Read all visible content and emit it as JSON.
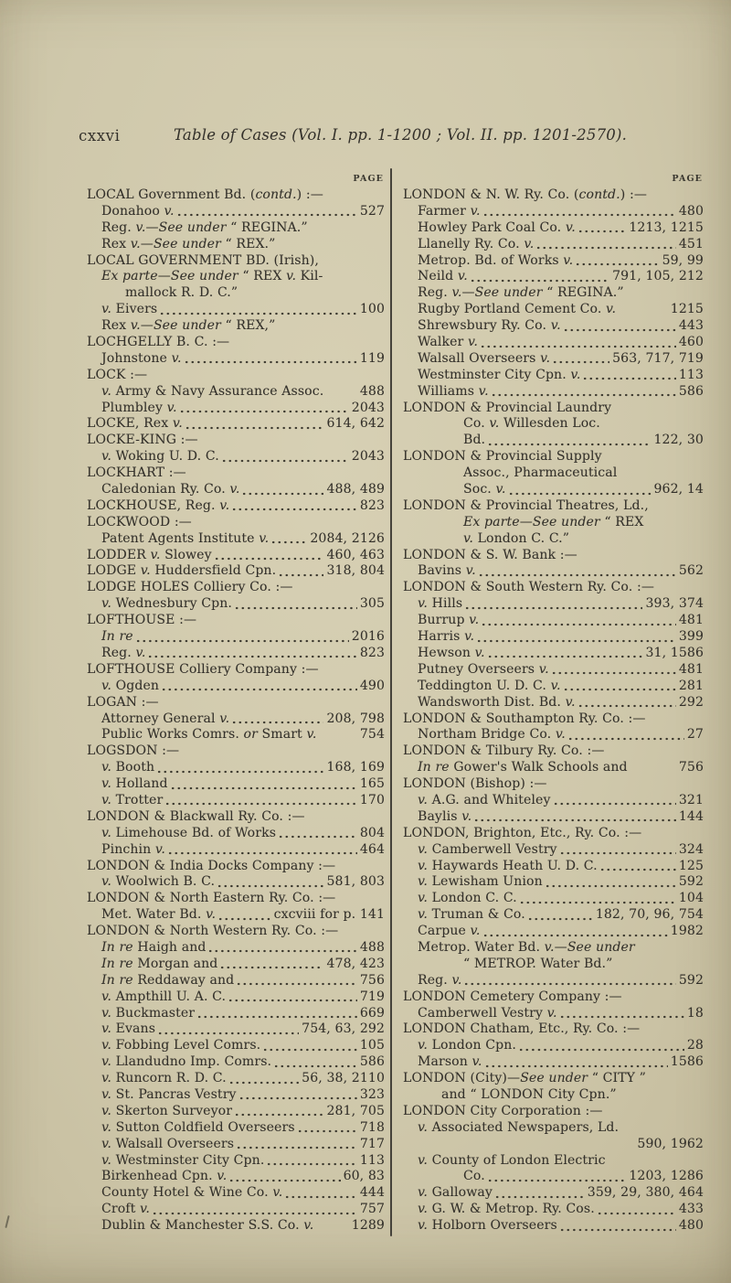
{
  "header": {
    "folio": "cxxvi",
    "title": "Table of Cases (Vol. I. pp. 1-1200 ; Vol. II. pp. 1201-2570).",
    "page_label": "PAGE"
  },
  "columns": [
    {
      "entries": [
        {
          "t": "LOCAL Government Bd. (contd.) :—",
          "i": 0
        },
        {
          "t": "Donahoo v.",
          "d": true,
          "p": "527",
          "i": 1
        },
        {
          "t": "Reg. v.—See under “ REGINA.”",
          "i": 1
        },
        {
          "t": "Rex v.—See under “ REX.”",
          "i": 1
        },
        {
          "t": "LOCAL GOVERNMENT BD. (Irish),",
          "i": 0
        },
        {
          "t": "Ex parte—See under “ REX v. Kil-",
          "i": 1
        },
        {
          "t": "mallock R. D. C.”",
          "i": 2
        },
        {
          "t": "v. Eivers",
          "d": true,
          "p": "100",
          "i": 1
        },
        {
          "t": "Rex v.—See under “ REX,”",
          "i": 1
        },
        {
          "t": "LOCHGELLY B. C. :—",
          "i": 0
        },
        {
          "t": "Johnstone v.",
          "d": true,
          "p": "119",
          "i": 1
        },
        {
          "t": "LOCK :—",
          "i": 0
        },
        {
          "t": "v. Army & Navy Assurance Assoc.",
          "p": "488",
          "i": 1
        },
        {
          "t": "Plumbley v.",
          "d": true,
          "p": "2043",
          "i": 1
        },
        {
          "t": "LOCKE, Rex v.",
          "d": true,
          "p": "614, 642",
          "i": 0
        },
        {
          "t": "LOCKE-KING :—",
          "i": 0
        },
        {
          "t": "v. Woking U. D. C.",
          "d": true,
          "p": "2043",
          "i": 1
        },
        {
          "t": "LOCKHART :—",
          "i": 0
        },
        {
          "t": "Caledonian Ry. Co. v.",
          "d": true,
          "p": "488, 489",
          "i": 1
        },
        {
          "t": "LOCKHOUSE, Reg. v.",
          "d": true,
          "p": "823",
          "i": 0
        },
        {
          "t": "LOCKWOOD :—",
          "i": 0
        },
        {
          "t": "Patent Agents Institute v.",
          "d": true,
          "p": "2084, 2126",
          "i": 1
        },
        {
          "t": "LODDER v. Slowey",
          "d": true,
          "p": "460, 463",
          "i": 0
        },
        {
          "t": "LODGE v. Huddersfield Cpn.",
          "d": true,
          "p": "318, 804",
          "i": 0
        },
        {
          "t": "LODGE HOLES Colliery Co. :—",
          "i": 0
        },
        {
          "t": "v. Wednesbury Cpn.",
          "d": true,
          "p": "305",
          "i": 1
        },
        {
          "t": "LOFTHOUSE :—",
          "i": 0
        },
        {
          "t": "In re",
          "d": true,
          "p": "2016",
          "i": 1
        },
        {
          "t": "Reg. v.",
          "d": true,
          "p": "823",
          "i": 1
        },
        {
          "t": "LOFTHOUSE Colliery Company :—",
          "i": 0
        },
        {
          "t": "v. Ogden",
          "d": true,
          "p": "490",
          "i": 1
        },
        {
          "t": "LOGAN :—",
          "i": 0
        },
        {
          "t": "Attorney General v.",
          "d": true,
          "p": "208, 798",
          "i": 1
        },
        {
          "t": "Public Works Comrs. or Smart v.",
          "p": "754",
          "i": 1
        },
        {
          "t": "LOGSDON :—",
          "i": 0
        },
        {
          "t": "v. Booth",
          "d": true,
          "p": "168, 169",
          "i": 1
        },
        {
          "t": "v. Holland",
          "d": true,
          "p": "165",
          "i": 1
        },
        {
          "t": "v. Trotter",
          "d": true,
          "p": "170",
          "i": 1
        },
        {
          "t": "LONDON & Blackwall Ry. Co. :—",
          "i": 0
        },
        {
          "t": "v. Limehouse Bd. of Works",
          "d": true,
          "p": "804",
          "i": 1
        },
        {
          "t": "Pinchin v.",
          "d": true,
          "p": "464",
          "i": 1
        },
        {
          "t": "LONDON & India Docks Company :—",
          "i": 0
        },
        {
          "t": "v. Woolwich B. C.",
          "d": true,
          "p": "581, 803",
          "i": 1
        },
        {
          "t": "LONDON & North Eastern Ry. Co. :—",
          "i": 0
        },
        {
          "t": "Met. Water Bd. v.",
          "d": true,
          "p": "cxcviii for p. 141",
          "i": 1
        },
        {
          "t": "LONDON & North Western Ry. Co. :—",
          "i": 0
        },
        {
          "t": "In re Haigh and",
          "d": true,
          "p": "488",
          "i": 1
        },
        {
          "t": "In re Morgan and",
          "d": true,
          "p": "478, 423",
          "i": 1
        },
        {
          "t": "In re Reddaway and",
          "d": true,
          "p": "756",
          "i": 1
        },
        {
          "t": "v. Ampthill U. A. C.",
          "d": true,
          "p": "719",
          "i": 1
        },
        {
          "t": "v. Buckmaster",
          "d": true,
          "p": "669",
          "i": 1
        },
        {
          "t": "v. Evans",
          "d": true,
          "p": "754, 63, 292",
          "i": 1
        },
        {
          "t": "v. Fobbing Level Comrs.",
          "d": true,
          "p": "105",
          "i": 1
        },
        {
          "t": "v. Llandudno Imp. Comrs.",
          "d": true,
          "p": "586",
          "i": 1
        },
        {
          "t": "v. Runcorn R. D. C.",
          "d": true,
          "p": "56, 38, 2110",
          "i": 1
        },
        {
          "t": "v. St. Pancras Vestry",
          "d": true,
          "p": "323",
          "i": 1
        },
        {
          "t": "v. Skerton Surveyor",
          "d": true,
          "p": "281, 705",
          "i": 1
        },
        {
          "t": "v. Sutton Coldfield Overseers",
          "d": true,
          "p": "718",
          "i": 1
        },
        {
          "t": "v. Walsall Overseers",
          "d": true,
          "p": "717",
          "i": 1
        },
        {
          "t": "v. Westminster City Cpn.",
          "d": true,
          "p": "113",
          "i": 1
        },
        {
          "t": "Birkenhead Cpn. v.",
          "d": true,
          "p": "60, 83",
          "i": 1
        },
        {
          "t": "County Hotel & Wine Co. v.",
          "d": true,
          "p": "444",
          "i": 1
        },
        {
          "t": "Croft v.",
          "d": true,
          "p": "757",
          "i": 1
        },
        {
          "t": "Dublin & Manchester S.S. Co. v.",
          "p": "1289",
          "i": 1
        }
      ]
    },
    {
      "entries": [
        {
          "t": "LONDON & N. W. Ry. Co. (contd.) :—",
          "i": 0
        },
        {
          "t": "Farmer v.",
          "d": true,
          "p": "480",
          "i": 1
        },
        {
          "t": "Howley Park Coal Co. v.",
          "d": true,
          "p": "1213, 1215",
          "i": 1
        },
        {
          "t": "Llanelly Ry. Co. v.",
          "d": true,
          "p": "451",
          "i": 1
        },
        {
          "t": "Metrop. Bd. of Works v.",
          "d": true,
          "p": "59, 99",
          "i": 1
        },
        {
          "t": "Neild v.",
          "d": true,
          "p": "791, 105, 212",
          "i": 1
        },
        {
          "t": "Reg. v.—See under “ REGINA.”",
          "i": 1
        },
        {
          "t": "Rugby Portland Cement Co. v.",
          "p": "1215",
          "i": 1
        },
        {
          "t": "Shrewsbury Ry. Co. v.",
          "d": true,
          "p": "443",
          "i": 1
        },
        {
          "t": "Walker v.",
          "d": true,
          "p": "460",
          "i": 1
        },
        {
          "t": "Walsall Overseers v.",
          "d": true,
          "p": "563, 717, 719",
          "i": 1
        },
        {
          "t": "Westminster City Cpn. v.",
          "d": true,
          "p": "113",
          "i": 1
        },
        {
          "t": "Williams v.",
          "d": true,
          "p": "586",
          "i": 1
        },
        {
          "t": "LONDON & Provincial Laundry",
          "i": 0
        },
        {
          "t": "Co. v. Willesden Loc.",
          "i": 3
        },
        {
          "t": "Bd.",
          "d": true,
          "p": "122, 30",
          "i": 3
        },
        {
          "t": "LONDON & Provincial Supply",
          "i": 0
        },
        {
          "t": "Assoc., Pharmaceutical",
          "i": 3
        },
        {
          "t": "Soc. v.",
          "d": true,
          "p": "962, 14",
          "i": 3
        },
        {
          "t": "LONDON & Provincial Theatres, Ld.,",
          "i": 0
        },
        {
          "t": "Ex parte—See under “ REX",
          "i": 3
        },
        {
          "t": "v. London C. C.”",
          "i": 3
        },
        {
          "t": "LONDON & S. W. Bank :—",
          "i": 0
        },
        {
          "t": "Bavins v.",
          "d": true,
          "p": "562",
          "i": 1
        },
        {
          "t": "LONDON & South Western Ry. Co. :—",
          "i": 0
        },
        {
          "t": "v. Hills",
          "d": true,
          "p": "393, 374",
          "i": 1
        },
        {
          "t": "Burrup v.",
          "d": true,
          "p": "481",
          "i": 1
        },
        {
          "t": "Harris v.",
          "d": true,
          "p": "399",
          "i": 1
        },
        {
          "t": "Hewson v.",
          "d": true,
          "p": "31, 1586",
          "i": 1
        },
        {
          "t": "Putney Overseers v.",
          "d": true,
          "p": "481",
          "i": 1
        },
        {
          "t": "Teddington U. D. C. v.",
          "d": true,
          "p": "281",
          "i": 1
        },
        {
          "t": "Wandsworth Dist. Bd. v.",
          "d": true,
          "p": "292",
          "i": 1
        },
        {
          "t": "LONDON & Southampton Ry. Co. :—",
          "i": 0
        },
        {
          "t": "Northam Bridge Co. v.",
          "d": true,
          "p": "27",
          "i": 1
        },
        {
          "t": "LONDON & Tilbury Ry. Co. :—",
          "i": 0
        },
        {
          "t": "In re Gower's Walk Schools and",
          "p": "756",
          "i": 1
        },
        {
          "t": "LONDON (Bishop) :—",
          "i": 0
        },
        {
          "t": "v. A.G. and Whiteley",
          "d": true,
          "p": "321",
          "i": 1
        },
        {
          "t": "Baylis v.",
          "d": true,
          "p": "144",
          "i": 1
        },
        {
          "t": "LONDON, Brighton, Etc., Ry. Co. :—",
          "i": 0
        },
        {
          "t": "v. Camberwell Vestry",
          "d": true,
          "p": "324",
          "i": 1
        },
        {
          "t": "v. Haywards Heath U. D. C.",
          "d": true,
          "p": "125",
          "i": 1
        },
        {
          "t": "v. Lewisham Union",
          "d": true,
          "p": "592",
          "i": 1
        },
        {
          "t": "v. London C. C.",
          "d": true,
          "p": "104",
          "i": 1
        },
        {
          "t": "v. Truman & Co.",
          "d": true,
          "p": "182, 70, 96, 754",
          "i": 1
        },
        {
          "t": "Carpue v.",
          "d": true,
          "p": "1982",
          "i": 1
        },
        {
          "t": "Metrop. Water Bd. v.—See under",
          "i": 1
        },
        {
          "t": "“ METROP. Water Bd.”",
          "i": 3
        },
        {
          "t": "Reg. v.",
          "d": true,
          "p": "592",
          "i": 1
        },
        {
          "t": "LONDON Cemetery Company :—",
          "i": 0
        },
        {
          "t": "Camberwell Vestry v.",
          "d": true,
          "p": "18",
          "i": 1
        },
        {
          "t": "LONDON Chatham, Etc., Ry. Co. :—",
          "i": 0
        },
        {
          "t": "v. London Cpn.",
          "d": true,
          "p": "28",
          "i": 1
        },
        {
          "t": "Marson v.",
          "d": true,
          "p": "1586",
          "i": 1
        },
        {
          "t": "LONDON (City)—See under “ CITY ”",
          "i": 0
        },
        {
          "t": "and “ LONDON City Cpn.”",
          "i": 2
        },
        {
          "t": "LONDON City Corporation :—",
          "i": 0
        },
        {
          "t": "v. Associated Newspapers, Ld.",
          "i": 1
        },
        {
          "t": "",
          "p": "590, 1962",
          "i": 0
        },
        {
          "t": "v. County of London Electric",
          "i": 1
        },
        {
          "t": "Co.",
          "d": true,
          "p": "1203, 1286",
          "i": 3
        },
        {
          "t": "v. Galloway",
          "d": true,
          "p": "359, 29, 380, 464",
          "i": 1
        },
        {
          "t": "v. G. W. & Metrop. Ry. Cos.",
          "d": true,
          "p": "433",
          "i": 1
        },
        {
          "t": "v. Holborn Overseers",
          "d": true,
          "p": "480",
          "i": 1
        }
      ]
    }
  ]
}
